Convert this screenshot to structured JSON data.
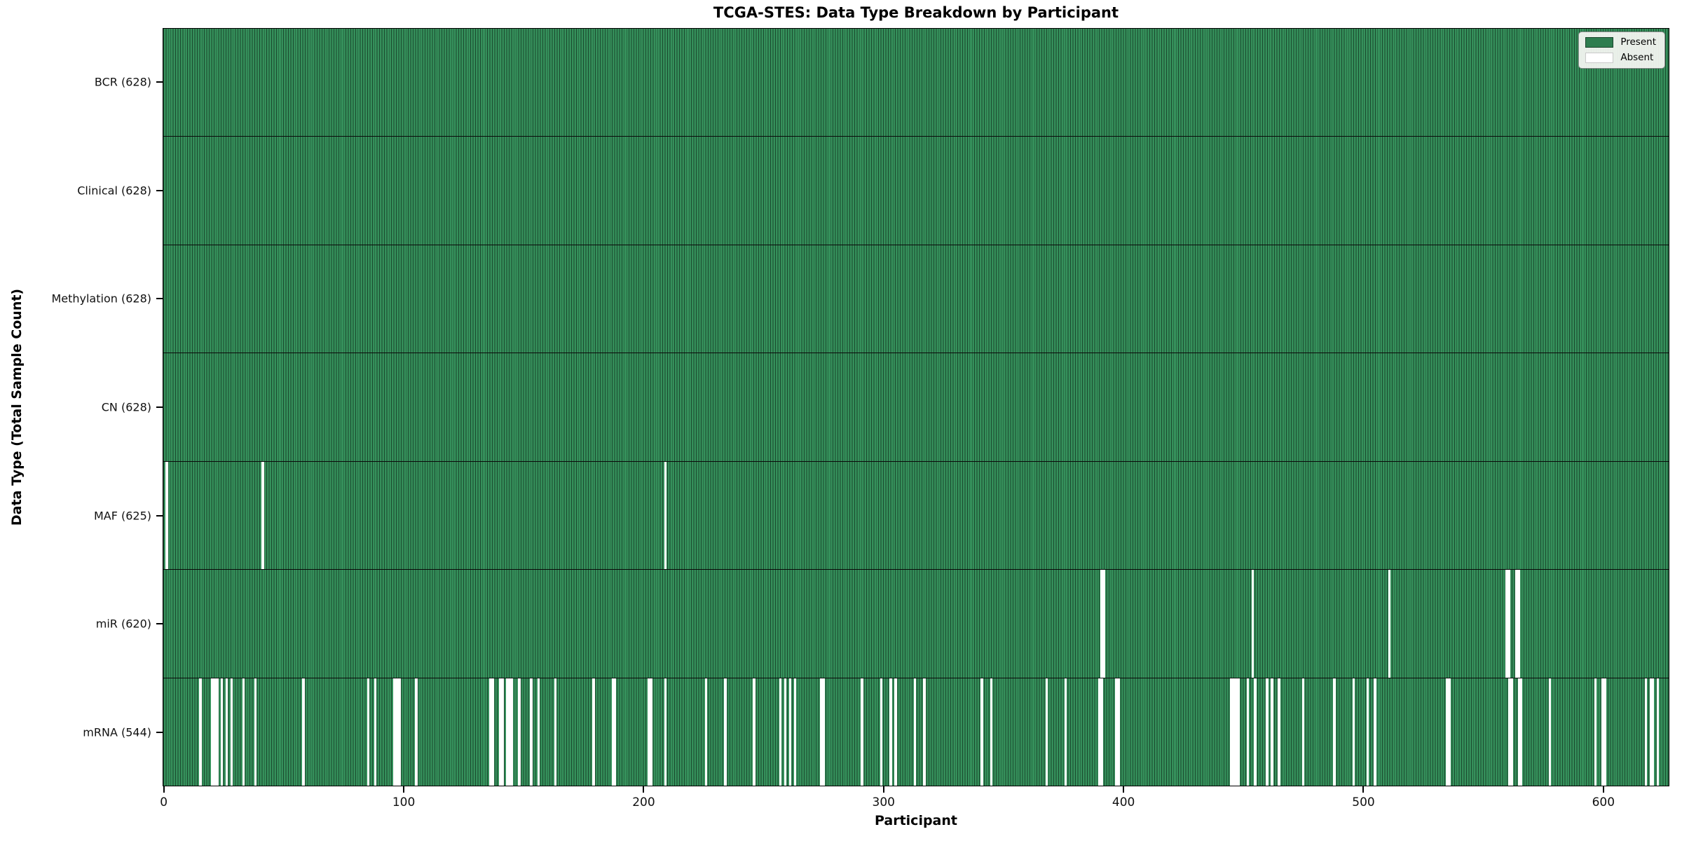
{
  "colors": {
    "present": "#2e7d4f",
    "present_cell_fill": "#35905b",
    "cell_edge": "rgba(0,0,0,0.5)",
    "absent": "#ffffff",
    "background": "#ffffff",
    "legend_background": "#f8f8f5",
    "legend_border": "#8a8a8a",
    "axis_line": "#000000"
  },
  "chart_data": {
    "type": "heatmap",
    "title": "TCGA-STES: Data Type Breakdown by Participant",
    "xlabel": "Participant",
    "ylabel": "Data Type (Total Sample Count)",
    "x_range": [
      0,
      628
    ],
    "x_ticks": [
      0,
      100,
      200,
      300,
      400,
      500,
      600
    ],
    "n_participants": 628,
    "grid": false,
    "legend_position": "upper right",
    "legend": [
      {
        "label": "Present",
        "color": "#2e7d4f"
      },
      {
        "label": "Absent",
        "color": "#ffffff"
      }
    ],
    "rows": [
      {
        "name": "bcr",
        "label": "BCR (628)",
        "data_type": "BCR",
        "total": 628,
        "absent_count": 0,
        "absent_participants": []
      },
      {
        "name": "clinical",
        "label": "Clinical (628)",
        "data_type": "Clinical",
        "total": 628,
        "absent_count": 0,
        "absent_participants": []
      },
      {
        "name": "methylation",
        "label": "Methylation (628)",
        "data_type": "Methylation",
        "total": 628,
        "absent_count": 0,
        "absent_participants": []
      },
      {
        "name": "cn",
        "label": "CN (628)",
        "data_type": "CN",
        "total": 628,
        "absent_count": 0,
        "absent_participants": []
      },
      {
        "name": "maf",
        "label": "MAF (625)",
        "data_type": "MAF",
        "total": 625,
        "absent_count": 3,
        "absent_participants": [
          1,
          41,
          209
        ]
      },
      {
        "name": "mir",
        "label": "miR (620)",
        "data_type": "miR",
        "total": 620,
        "absent_count": 8,
        "absent_participants": [
          391,
          392,
          454,
          511,
          560,
          561,
          564,
          565
        ]
      },
      {
        "name": "mrna",
        "label": "mRNA (544)",
        "data_type": "mRNA",
        "total": 544,
        "absent_count": 84,
        "absent_participants": [
          15,
          20,
          21,
          22,
          24,
          26,
          28,
          33,
          38,
          58,
          85,
          88,
          96,
          97,
          98,
          105,
          136,
          137,
          140,
          141,
          143,
          144,
          145,
          148,
          153,
          156,
          163,
          179,
          187,
          188,
          202,
          203,
          209,
          226,
          234,
          246,
          257,
          259,
          261,
          263,
          274,
          275,
          291,
          299,
          303,
          305,
          313,
          317,
          341,
          345,
          368,
          376,
          390,
          391,
          397,
          398,
          445,
          446,
          447,
          448,
          452,
          455,
          460,
          462,
          465,
          475,
          488,
          496,
          502,
          505,
          535,
          536,
          561,
          562,
          565,
          566,
          578,
          597,
          600,
          601,
          618,
          620,
          621,
          623
        ]
      }
    ]
  }
}
